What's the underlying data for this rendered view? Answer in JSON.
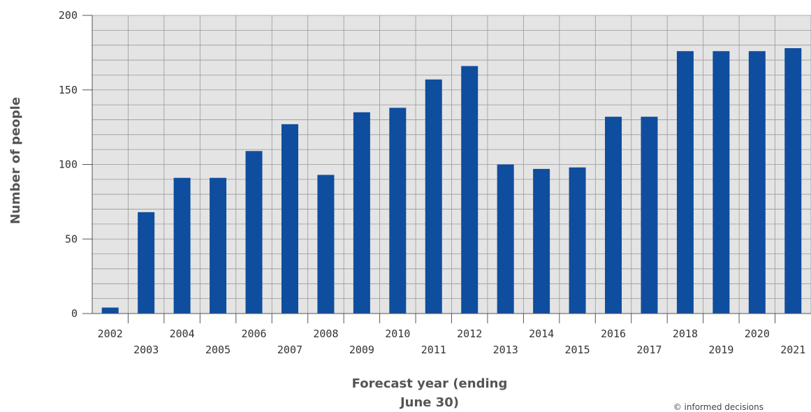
{
  "chart_data": {
    "type": "bar",
    "title": "",
    "xlabel_line1": "Forecast year (ending",
    "xlabel_line2": "June 30)",
    "ylabel": "Number of people",
    "categories": [
      "2002",
      "2003",
      "2004",
      "2005",
      "2006",
      "2007",
      "2008",
      "2009",
      "2010",
      "2011",
      "2012",
      "2013",
      "2014",
      "2015",
      "2016",
      "2017",
      "2018",
      "2019",
      "2020",
      "2021"
    ],
    "values": [
      4,
      68,
      91,
      91,
      109,
      127,
      93,
      135,
      138,
      157,
      166,
      100,
      97,
      98,
      132,
      132,
      176,
      176,
      176,
      178
    ],
    "ylim": [
      0,
      200
    ],
    "yticks": [
      0,
      50,
      100,
      150,
      200
    ],
    "grid": true,
    "bar_color": "#0f4d9e",
    "plot_background": "#e4e4e4",
    "grid_color": "#999999"
  },
  "footer": {
    "credit": "© informed decisions"
  }
}
